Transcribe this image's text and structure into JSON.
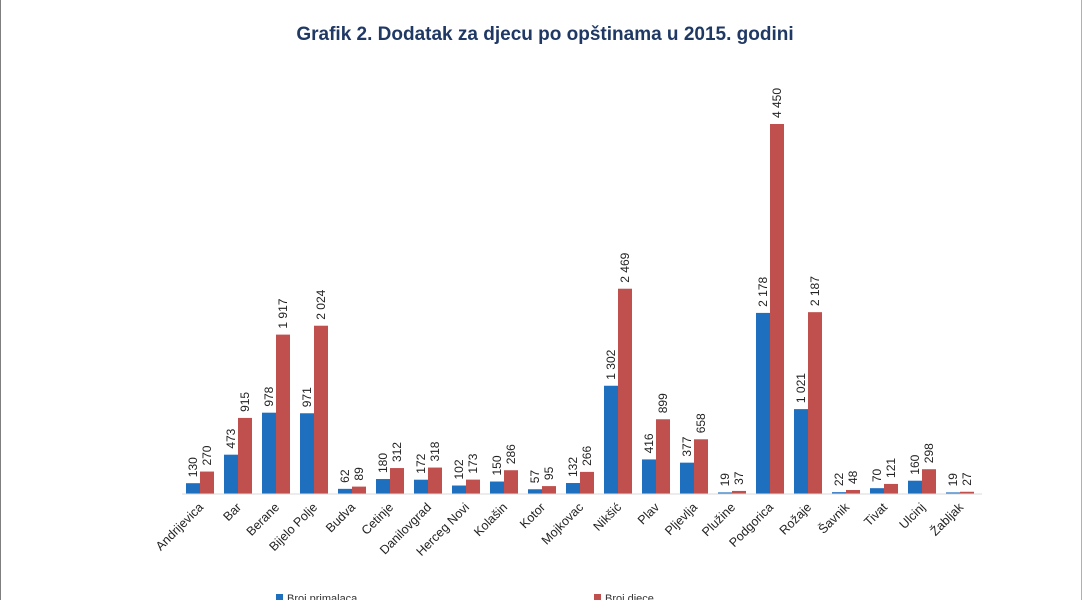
{
  "chart_data": {
    "type": "bar",
    "title": "Grafik 2. Dodatak za djecu po opštinama u 2015. godini",
    "categories": [
      "Andrijevica",
      "Bar",
      "Berane",
      "Bijelo Polje",
      "Budva",
      "Cetinje",
      "Danilovgrad",
      "Herceg Novi",
      "Kolašin",
      "Kotor",
      "Mojkovac",
      "Nikšić",
      "Plav",
      "Pljevlja",
      "Plužine",
      "Podgorica",
      "Rožaje",
      "Šavnik",
      "Tivat",
      "Ulcinj",
      "Žabljak"
    ],
    "series": [
      {
        "name": "Broj primalaca",
        "color": "#1f6fbf",
        "values": [
          130,
          473,
          978,
          971,
          62,
          180,
          172,
          102,
          150,
          57,
          132,
          1302,
          416,
          377,
          19,
          2178,
          1021,
          22,
          70,
          160,
          19
        ],
        "labels": [
          "130",
          "473",
          "978",
          "971",
          "62",
          "180",
          "172",
          "102",
          "150",
          "57",
          "132",
          "1 302",
          "416",
          "377",
          "19",
          "2 178",
          "1 021",
          "22",
          "70",
          "160",
          "19"
        ]
      },
      {
        "name": "Broj djece",
        "color": "#c0504d",
        "values": [
          270,
          915,
          1917,
          2024,
          89,
          312,
          318,
          173,
          286,
          95,
          266,
          2469,
          899,
          658,
          37,
          4450,
          2187,
          48,
          121,
          298,
          27
        ],
        "labels": [
          "270",
          "915",
          "1 917",
          "2 024",
          "89",
          "312",
          "318",
          "173",
          "286",
          "95",
          "266",
          "2 469",
          "899",
          "658",
          "37",
          "4 450",
          "2 187",
          "48",
          "121",
          "298",
          "27"
        ]
      }
    ],
    "ylim": [
      0,
      4800
    ],
    "xlabel": "",
    "ylabel": "",
    "legend_position": "bottom"
  }
}
